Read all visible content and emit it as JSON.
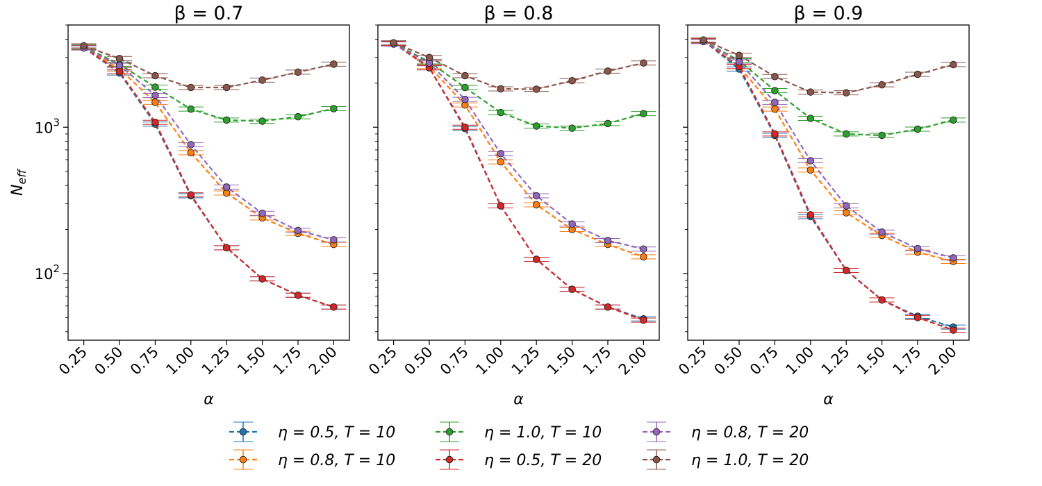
{
  "chart_data": {
    "type": "line",
    "y_scale": "log",
    "ylabel": "N_eff",
    "xlabel": "α",
    "ylim": [
      35,
      5000
    ],
    "x": [
      0.25,
      0.5,
      0.75,
      1.0,
      1.25,
      1.5,
      1.75,
      2.0
    ],
    "x_tick_labels": [
      "0.25",
      "0.50",
      "0.75",
      "1.00",
      "1.25",
      "1.50",
      "1.75",
      "2.00"
    ],
    "y_tick_labels": [
      {
        "value": 100,
        "base": "10",
        "exp": "2"
      },
      {
        "value": 1000,
        "base": "10",
        "exp": "3"
      }
    ],
    "legend": {
      "placement": "bottom-center",
      "columns": 3
    },
    "series_meta": [
      {
        "name": "η = 0.5, T = 10",
        "color": "#1f77b4"
      },
      {
        "name": "η = 0.8, T = 10",
        "color": "#ff7f0e"
      },
      {
        "name": "η = 1.0, T = 10",
        "color": "#2ca02c"
      },
      {
        "name": "η = 0.5, T = 20",
        "color": "#d62728"
      },
      {
        "name": "η = 0.8, T = 20",
        "color": "#9467bd"
      },
      {
        "name": "η = 1.0, T = 20",
        "color": "#8c564b"
      }
    ],
    "panels": [
      {
        "title": "β = 0.7",
        "series": [
          {
            "values": [
              3500,
              2350,
              1050,
              340,
              150,
              92,
              71,
              59
            ]
          },
          {
            "values": [
              3550,
              2500,
              1480,
              670,
              355,
              240,
              188,
              158
            ]
          },
          {
            "values": [
              3550,
              2700,
              1880,
              1330,
              1120,
              1100,
              1180,
              1340
            ]
          },
          {
            "values": [
              3500,
              2400,
              1080,
              345,
              150,
              92,
              71,
              59
            ]
          },
          {
            "values": [
              3480,
              2650,
              1650,
              760,
              390,
              258,
              197,
              170
            ]
          },
          {
            "values": [
              3600,
              2950,
              2250,
              1870,
              1870,
              2100,
              2380,
              2700
            ]
          }
        ]
      },
      {
        "title": "β = 0.8",
        "series": [
          {
            "values": [
              3750,
              2550,
              980,
              290,
              125,
              78,
              59,
              49
            ]
          },
          {
            "values": [
              3750,
              2600,
              1420,
              580,
              295,
              200,
              158,
              130
            ]
          },
          {
            "values": [
              3750,
              2800,
              1870,
              1260,
              1020,
              985,
              1060,
              1240
            ]
          },
          {
            "values": [
              3750,
              2550,
              1000,
              290,
              125,
              78,
              59,
              48
            ]
          },
          {
            "values": [
              3700,
              2750,
              1550,
              660,
              340,
              218,
              168,
              147
            ]
          },
          {
            "values": [
              3780,
              3000,
              2250,
              1830,
              1820,
              2080,
              2420,
              2750
            ]
          }
        ]
      },
      {
        "title": "β = 0.9",
        "series": [
          {
            "values": [
              3900,
              2500,
              880,
              245,
              105,
              66,
              51,
              43
            ]
          },
          {
            "values": [
              3900,
              2600,
              1330,
              510,
              260,
              182,
              140,
              121
            ]
          },
          {
            "values": [
              3900,
              2850,
              1780,
              1150,
              900,
              880,
              970,
              1120
            ]
          },
          {
            "values": [
              3900,
              2600,
              900,
              252,
              105,
              66,
              50,
              41
            ]
          },
          {
            "values": [
              3850,
              2800,
              1480,
              590,
              290,
              192,
              148,
              128
            ]
          },
          {
            "values": [
              3950,
              3100,
              2220,
              1740,
              1720,
              1950,
              2300,
              2680
            ]
          }
        ]
      }
    ]
  }
}
